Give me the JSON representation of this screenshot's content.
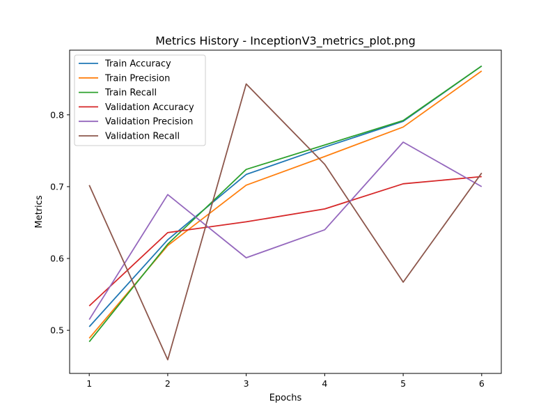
{
  "chart_data": {
    "type": "line",
    "title": "Metrics History - InceptionV3_metrics_plot.png",
    "xlabel": "Epochs",
    "ylabel": "Metrics",
    "x": [
      1,
      2,
      3,
      4,
      5,
      6
    ],
    "xlim": [
      0.75,
      6.25
    ],
    "ylim": [
      0.44,
      0.89
    ],
    "xticks": [
      "1",
      "2",
      "3",
      "4",
      "5",
      "6"
    ],
    "yticks": [
      "0.5",
      "0.6",
      "0.7",
      "0.8"
    ],
    "ytick_values": [
      0.5,
      0.6,
      0.7,
      0.8
    ],
    "grid": false,
    "legend_position": "top-left",
    "series": [
      {
        "name": "Train Accuracy",
        "color": "#1f77b4",
        "values": [
          0.505,
          0.626,
          0.717,
          0.755,
          0.791,
          0.868
        ]
      },
      {
        "name": "Train Precision",
        "color": "#ff7f0e",
        "values": [
          0.489,
          0.618,
          0.702,
          0.742,
          0.783,
          0.861
        ]
      },
      {
        "name": "Train Recall",
        "color": "#2ca02c",
        "values": [
          0.484,
          0.62,
          0.724,
          0.758,
          0.792,
          0.868
        ]
      },
      {
        "name": "Validation Accuracy",
        "color": "#d62728",
        "values": [
          0.534,
          0.636,
          0.651,
          0.669,
          0.704,
          0.714
        ]
      },
      {
        "name": "Validation Precision",
        "color": "#9467bd",
        "values": [
          0.515,
          0.689,
          0.601,
          0.64,
          0.762,
          0.7
        ]
      },
      {
        "name": "Validation Recall",
        "color": "#8c564b",
        "values": [
          0.702,
          0.459,
          0.843,
          0.731,
          0.567,
          0.719
        ]
      }
    ]
  }
}
